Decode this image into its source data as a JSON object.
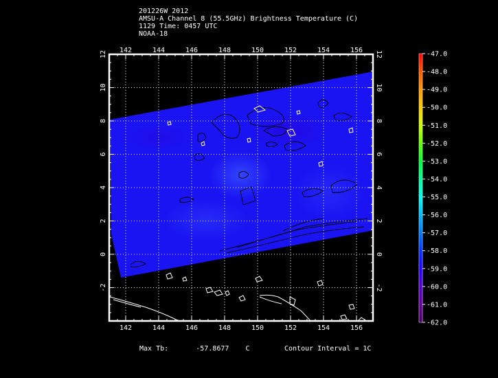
{
  "header": {
    "line1": "201226W 2012",
    "line2": "AMSU-A Channel 8 (55.5GHz) Brightness Temperature (C)",
    "line3": "1129 Time: 0457 UTC",
    "line4": "NOAA-18"
  },
  "map": {
    "lon_min": 141,
    "lon_max": 157,
    "lat_min": -4,
    "lat_max": 12,
    "lon_ticks": [
      "142",
      "144",
      "146",
      "148",
      "150",
      "152",
      "154",
      "156"
    ],
    "lat_ticks_left": [
      "12",
      "10",
      "8",
      "6",
      "4",
      "2",
      "0",
      "-2"
    ],
    "lat_ticks_right": [
      "12",
      "10",
      "8",
      "6",
      "4",
      "2",
      "0",
      "-2"
    ],
    "grid": true,
    "swath_color": "#1a14f2"
  },
  "colorbar": {
    "unit": "C",
    "labels": [
      "-47.0",
      "-48.0",
      "-49.0",
      "-50.0",
      "-51.0",
      "-52.0",
      "-53.0",
      "-54.0",
      "-55.0",
      "-56.0",
      "-57.0",
      "-58.0",
      "-59.0",
      "-60.0",
      "-61.0",
      "-62.0"
    ],
    "colors": [
      "#ff0000",
      "#ff5500",
      "#ff9900",
      "#ffcc00",
      "#ccff00",
      "#66ff00",
      "#00ff33",
      "#00ff99",
      "#00ffee",
      "#00bbff",
      "#0077ff",
      "#0033ff",
      "#2200ff",
      "#5500cc",
      "#66009a",
      "#4d0066"
    ]
  },
  "footer": {
    "max_tb_label": "Max Tb:",
    "max_tb_value": "-57.8677",
    "max_tb_unit": "C",
    "contour": "Contour Interval = 1C"
  }
}
